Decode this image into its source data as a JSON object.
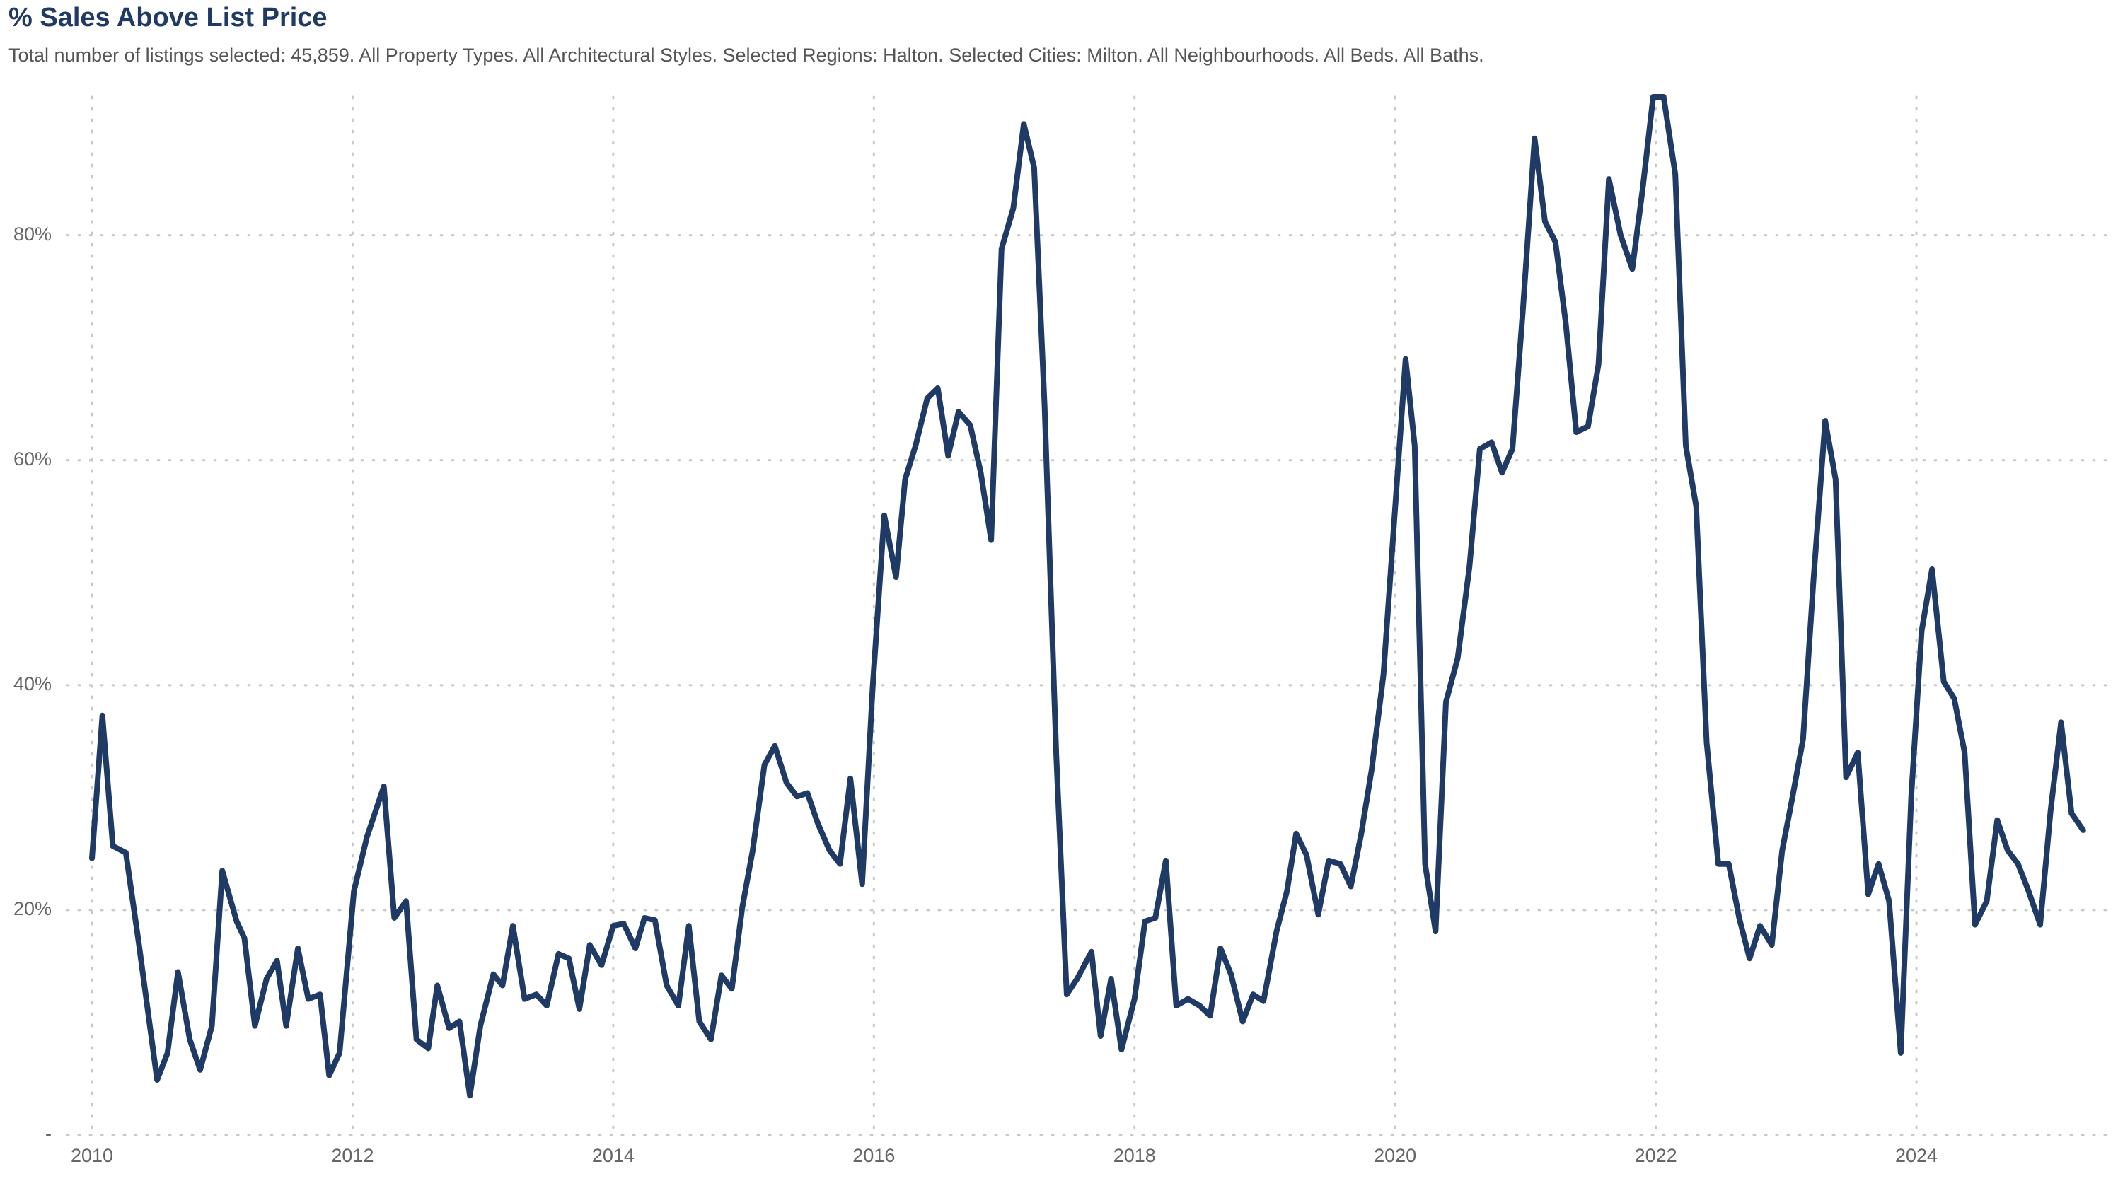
{
  "chart_data": {
    "type": "line",
    "title": "% Sales Above List Price",
    "subtitle": "Total number of listings selected: 45,859. All Property Types. All Architectural Styles. Selected Regions: Halton. Selected Cities: Milton. All Neighbourhoods. All Beds. All Baths.",
    "color": "#1f3a64",
    "grid": true,
    "xlim": [
      2009.81,
      2025.46
    ],
    "xticks": [
      2010,
      2012,
      2014,
      2016,
      2018,
      2020,
      2022,
      2024
    ],
    "ylim": [
      0,
      92.3
    ],
    "yticks": [
      {
        "value": 0,
        "label": "-"
      },
      {
        "value": 20,
        "label": "20%"
      },
      {
        "value": 40,
        "label": "40%"
      },
      {
        "value": 60,
        "label": "60%"
      },
      {
        "value": 80,
        "label": "80%"
      }
    ],
    "x": [
      2010.0,
      2010.08,
      2010.16,
      2010.26,
      2010.36,
      2010.5,
      2010.58,
      2010.66,
      2010.75,
      2010.83,
      2010.92,
      2011.0,
      2011.11,
      2011.17,
      2011.25,
      2011.34,
      2011.42,
      2011.49,
      2011.58,
      2011.66,
      2011.75,
      2011.82,
      2011.9,
      2012.01,
      2012.11,
      2012.24,
      2012.32,
      2012.41,
      2012.49,
      2012.58,
      2012.65,
      2012.74,
      2012.82,
      2012.9,
      2012.98,
      2013.08,
      2013.15,
      2013.23,
      2013.32,
      2013.41,
      2013.49,
      2013.58,
      2013.66,
      2013.74,
      2013.82,
      2013.91,
      2014.0,
      2014.08,
      2014.17,
      2014.24,
      2014.32,
      2014.41,
      2014.5,
      2014.58,
      2014.66,
      2014.75,
      2014.83,
      2014.91,
      2014.99,
      2015.07,
      2015.16,
      2015.24,
      2015.33,
      2015.41,
      2015.49,
      2015.57,
      2015.66,
      2015.74,
      2015.82,
      2015.91,
      2015.99,
      2016.08,
      2016.17,
      2016.24,
      2016.32,
      2016.41,
      2016.49,
      2016.57,
      2016.65,
      2016.74,
      2016.82,
      2016.9,
      2016.98,
      2017.07,
      2017.15,
      2017.23,
      2017.31,
      2017.4,
      2017.48,
      2017.56,
      2017.67,
      2017.74,
      2017.82,
      2017.9,
      2018.0,
      2018.08,
      2018.16,
      2018.24,
      2018.32,
      2018.41,
      2018.5,
      2018.58,
      2018.66,
      2018.74,
      2018.83,
      2018.91,
      2018.99,
      2019.09,
      2019.17,
      2019.24,
      2019.32,
      2019.41,
      2019.49,
      2019.58,
      2019.66,
      2019.74,
      2019.82,
      2019.91,
      2019.99,
      2020.08,
      2020.15,
      2020.23,
      2020.31,
      2020.39,
      2020.48,
      2020.57,
      2020.65,
      2020.74,
      2020.82,
      2020.9,
      2020.98,
      2021.07,
      2021.15,
      2021.23,
      2021.31,
      2021.39,
      2021.48,
      2021.56,
      2021.64,
      2021.73,
      2021.82,
      2021.9,
      2021.98,
      2022.06,
      2022.15,
      2022.23,
      2022.31,
      2022.39,
      2022.48,
      2022.56,
      2022.64,
      2022.72,
      2022.8,
      2022.89,
      2022.97,
      2023.05,
      2023.13,
      2023.21,
      2023.3,
      2023.38,
      2023.46,
      2023.55,
      2023.63,
      2023.71,
      2023.79,
      2023.88,
      2023.96,
      2024.04,
      2024.12,
      2024.21,
      2024.29,
      2024.37,
      2024.45,
      2024.54,
      2024.62,
      2024.7,
      2024.78,
      2024.86,
      2024.95,
      2025.03,
      2025.11,
      2025.19,
      2025.28
    ],
    "values": [
      24.6,
      37.3,
      25.7,
      25.1,
      17,
      4.9,
      7.3,
      14.5,
      8.5,
      5.8,
      9.7,
      23.5,
      19,
      17.5,
      9.7,
      13.9,
      15.5,
      9.7,
      16.6,
      12.1,
      12.5,
      5.3,
      7.3,
      21.7,
      26.5,
      31,
      19.3,
      20.8,
      8.5,
      7.7,
      13.3,
      9.5,
      10.1,
      3.5,
      9.7,
      14.3,
      13.3,
      18.6,
      12.1,
      12.5,
      11.5,
      16.1,
      15.7,
      11.2,
      16.9,
      15.1,
      18.6,
      18.8,
      16.6,
      19.3,
      19.1,
      13.3,
      11.5,
      18.6,
      10.1,
      8.5,
      14.2,
      13,
      20.2,
      25.3,
      32.9,
      34.6,
      31.3,
      30.1,
      30.4,
      27.7,
      25.3,
      24.1,
      31.7,
      22.3,
      39.7,
      55.1,
      49.6,
      58.3,
      61.3,
      65.5,
      66.4,
      60.4,
      64.3,
      63.1,
      58.9,
      52.9,
      78.8,
      82.4,
      89.9,
      86,
      64.9,
      33.7,
      12.5,
      13.9,
      16.3,
      8.8,
      13.9,
      7.6,
      12.1,
      19,
      19.3,
      24.4,
      11.5,
      12.1,
      11.5,
      10.6,
      16.6,
      14.3,
      10.1,
      12.5,
      11.9,
      18.1,
      21.7,
      26.8,
      24.9,
      19.6,
      24.4,
      24.1,
      22.1,
      26.8,
      32.5,
      40.9,
      54.1,
      69,
      61.3,
      24.1,
      18.1,
      38.5,
      42.4,
      50.5,
      61,
      61.6,
      58.9,
      61,
      73.3,
      88.6,
      81.2,
      79.4,
      72.1,
      62.5,
      63,
      68.5,
      85,
      80,
      77,
      84.2,
      92.3,
      92.3,
      85.4,
      61.3,
      55.9,
      34.9,
      24.1,
      24.1,
      19.3,
      15.7,
      18.6,
      16.9,
      25.3,
      30.1,
      35.2,
      49.3,
      63.5,
      58.3,
      31.8,
      34,
      21.4,
      24.1,
      20.8,
      7.3,
      30.1,
      44.8,
      50.3,
      40.3,
      38.8,
      34,
      18.7,
      20.8,
      28,
      25.3,
      24.1,
      21.7,
      18.7,
      28.9,
      36.7,
      28.6,
      27.1
    ]
  }
}
